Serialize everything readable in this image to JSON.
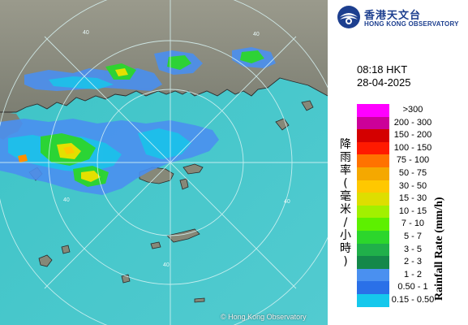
{
  "header": {
    "logo_zh": "香港天文台",
    "logo_en": "HONG KONG OBSERVATORY"
  },
  "timestamp": {
    "time": "08:18 HKT",
    "date": "28-04-2025"
  },
  "legend": {
    "title_en": "Rainfall Rate (mm/h)",
    "title_zh": "降雨率(毫米/小時)",
    "items": [
      {
        "label": ">300",
        "color": "#ff00ff"
      },
      {
        "label": "200 - 300",
        "color": "#cc0099"
      },
      {
        "label": "150 - 200",
        "color": "#d40000"
      },
      {
        "label": "100 - 150",
        "color": "#ff1a00"
      },
      {
        "label": "75 - 100",
        "color": "#ff7200"
      },
      {
        "label": "50 - 75",
        "color": "#f5a800"
      },
      {
        "label": "30 - 50",
        "color": "#ffc800"
      },
      {
        "label": "15 - 30",
        "color": "#dede00"
      },
      {
        "label": "10 - 15",
        "color": "#a2f000"
      },
      {
        "label": "7 - 10",
        "color": "#5df000"
      },
      {
        "label": "5 - 7",
        "color": "#2cd62c"
      },
      {
        "label": "3 - 5",
        "color": "#20b04a"
      },
      {
        "label": "2 - 3",
        "color": "#14884a"
      },
      {
        "label": "1 - 2",
        "color": "#4a90f0"
      },
      {
        "label": "0.50 - 1",
        "color": "#2a70e8"
      },
      {
        "label": "0.15 - 0.50",
        "color": "#15c8ec"
      }
    ]
  },
  "map": {
    "range_ring_label": "40",
    "copyright": "© Hong Kong Observatory"
  }
}
